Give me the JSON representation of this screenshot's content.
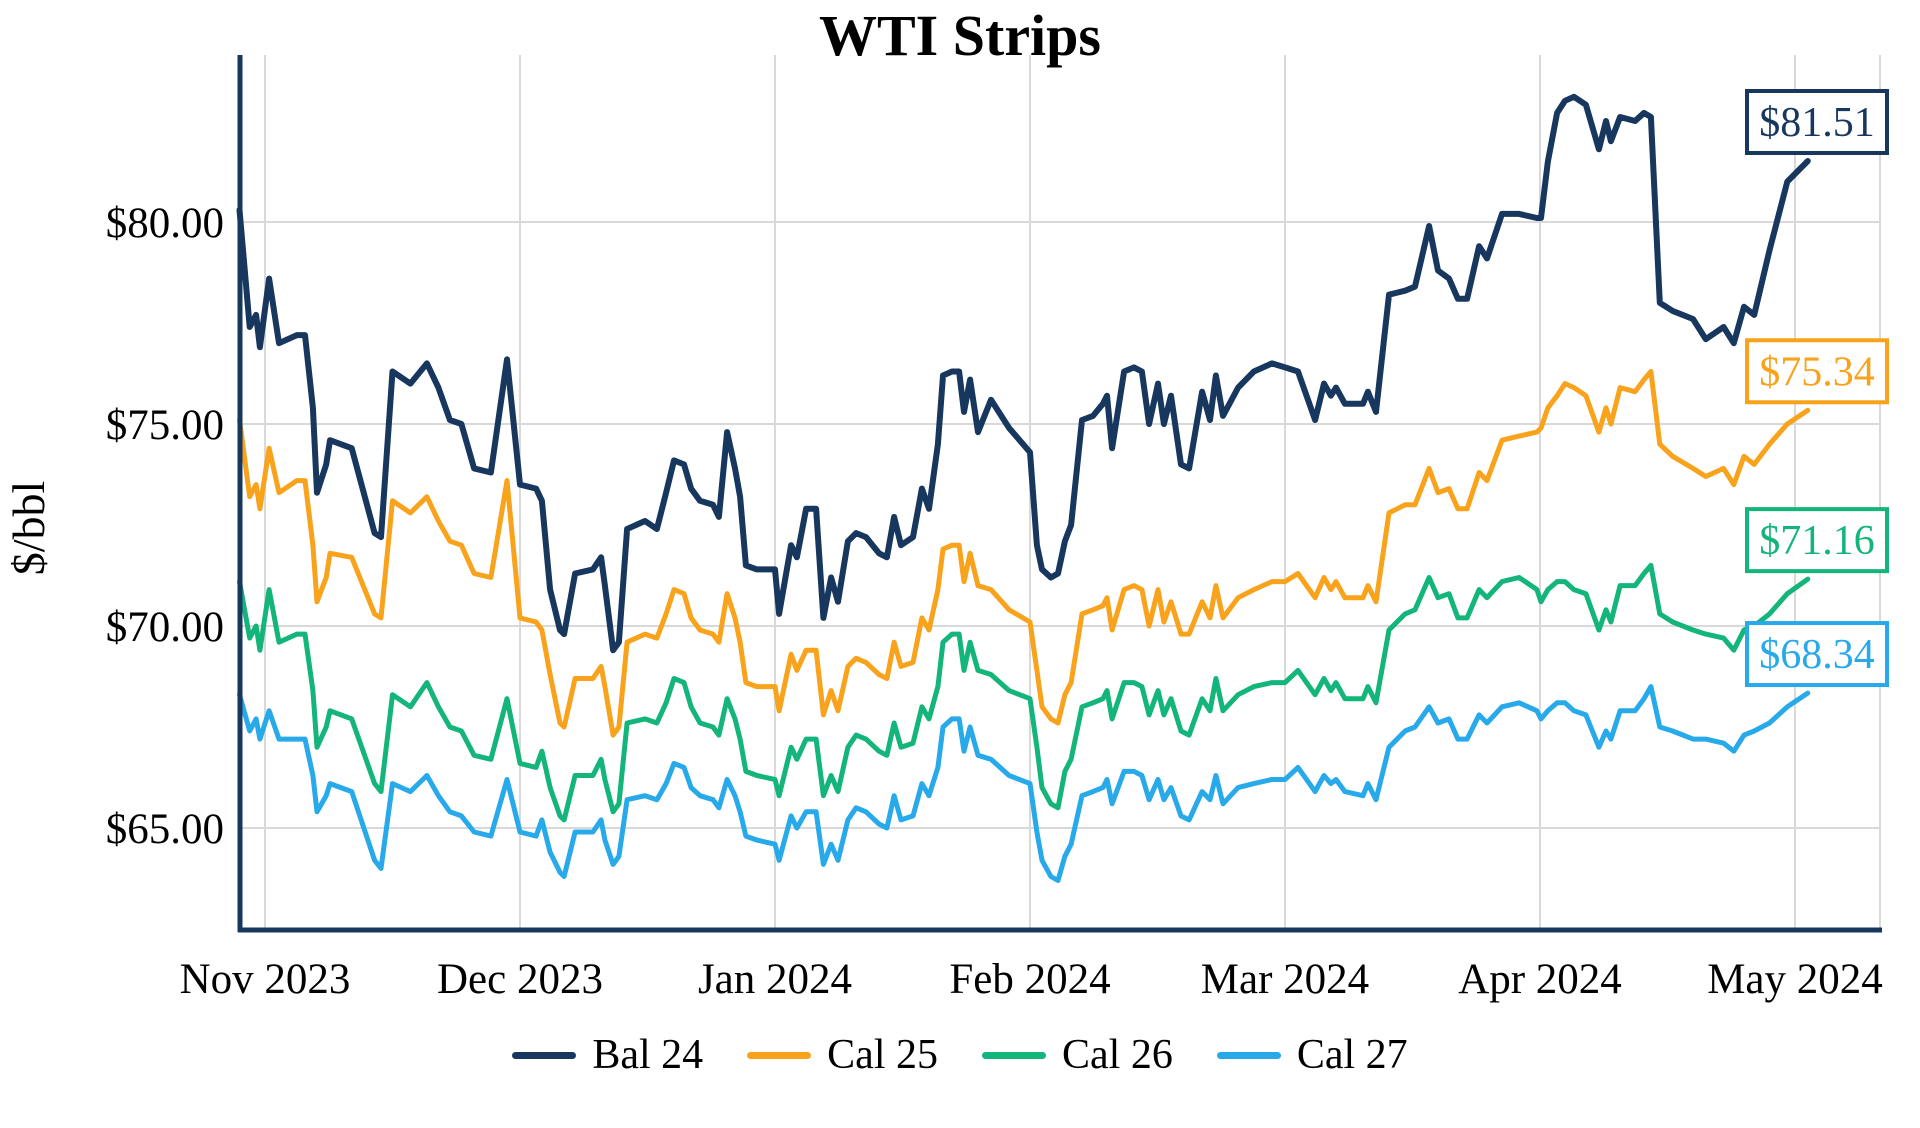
{
  "chart": {
    "title": "WTI Strips",
    "ylabel": "$/bbl"
  },
  "colors": {
    "axis_spine": "#17375E",
    "gridline": "#D9D9D9",
    "text": "#000000",
    "background": "#FFFFFF"
  },
  "chart_data": {
    "type": "line",
    "title": "WTI Strips",
    "xlabel": "",
    "ylabel": "$/bbl",
    "x_unit": "months since 2023-11-01 (0 = Nov 1 2023, 6 = May 1 2024)",
    "xlim": [
      -0.12,
      6.35
    ],
    "ylim": [
      62.3,
      84.1
    ],
    "grid": true,
    "legend_position": "bottom",
    "y_ticks": [
      {
        "label": "$65.00",
        "value": 65
      },
      {
        "label": "$70.00",
        "value": 70
      },
      {
        "label": "$75.00",
        "value": 75
      },
      {
        "label": "$80.00",
        "value": 80
      }
    ],
    "x_ticks": [
      {
        "label": "Nov 2023",
        "value": 0
      },
      {
        "label": "Dec 2023",
        "value": 1
      },
      {
        "label": "Jan 2024",
        "value": 2
      },
      {
        "label": "Feb 2024",
        "value": 3
      },
      {
        "label": "Mar 2024",
        "value": 4
      },
      {
        "label": "Apr 2024",
        "value": 5
      },
      {
        "label": "May 2024",
        "value": 6
      }
    ],
    "x": [
      -0.1,
      -0.06,
      -0.035,
      -0.02,
      0.016,
      0.055,
      0.125,
      0.157,
      0.188,
      0.204,
      0.24,
      0.255,
      0.34,
      0.43,
      0.455,
      0.5,
      0.57,
      0.635,
      0.68,
      0.725,
      0.77,
      0.82,
      0.886,
      0.949,
      1.0,
      1.063,
      1.086,
      1.118,
      1.157,
      1.173,
      1.216,
      1.286,
      1.318,
      1.333,
      1.365,
      1.388,
      1.42,
      1.49,
      1.537,
      1.573,
      1.604,
      1.643,
      1.671,
      1.706,
      1.757,
      1.78,
      1.812,
      1.843,
      1.863,
      1.886,
      1.929,
      2.0,
      2.016,
      2.063,
      2.086,
      2.122,
      2.161,
      2.19,
      2.22,
      2.247,
      2.286,
      2.318,
      2.357,
      2.408,
      2.439,
      2.467,
      2.494,
      2.541,
      2.576,
      2.604,
      2.639,
      2.659,
      2.694,
      2.722,
      2.741,
      2.765,
      2.796,
      2.847,
      2.918,
      3.0,
      3.027,
      3.047,
      3.082,
      3.11,
      3.137,
      3.161,
      3.204,
      3.247,
      3.286,
      3.302,
      3.322,
      3.369,
      3.408,
      3.439,
      3.467,
      3.502,
      3.525,
      3.553,
      3.592,
      3.624,
      3.675,
      3.706,
      3.729,
      3.757,
      3.816,
      3.878,
      3.949,
      4.0,
      4.051,
      4.118,
      4.153,
      4.18,
      4.2,
      4.235,
      4.306,
      4.325,
      4.357,
      4.408,
      4.471,
      4.51,
      4.565,
      4.6,
      4.643,
      4.678,
      4.714,
      4.761,
      4.792,
      4.851,
      4.918,
      4.988,
      5.004,
      5.031,
      5.067,
      5.098,
      5.133,
      5.18,
      5.231,
      5.259,
      5.278,
      5.314,
      5.373,
      5.408,
      5.435,
      5.47,
      5.52,
      5.6,
      5.65,
      5.72,
      5.76,
      5.8,
      5.84,
      5.9,
      5.97,
      6.05
    ],
    "series": [
      {
        "name": "Bal 24",
        "color": "#17375E",
        "end_label": "$81.51",
        "last_value": 81.51,
        "values": [
          80.3,
          77.4,
          77.7,
          76.9,
          78.6,
          77.0,
          77.2,
          77.2,
          75.4,
          73.3,
          74.0,
          74.6,
          74.4,
          72.3,
          72.2,
          76.3,
          76.0,
          76.5,
          75.9,
          75.1,
          75.0,
          73.9,
          73.8,
          76.6,
          73.5,
          73.4,
          73.1,
          70.9,
          69.9,
          69.8,
          71.3,
          71.4,
          71.7,
          71.0,
          69.4,
          69.6,
          72.4,
          72.6,
          72.4,
          73.3,
          74.1,
          74.0,
          73.4,
          73.1,
          73.0,
          72.7,
          74.8,
          73.9,
          73.2,
          71.5,
          71.4,
          71.4,
          70.3,
          72.0,
          71.7,
          72.9,
          72.9,
          70.2,
          71.2,
          70.6,
          72.1,
          72.3,
          72.2,
          71.8,
          71.7,
          72.7,
          72.0,
          72.2,
          73.4,
          72.9,
          74.5,
          76.2,
          76.3,
          76.3,
          75.3,
          76.1,
          74.8,
          75.6,
          74.9,
          74.3,
          72.0,
          71.4,
          71.2,
          71.3,
          72.1,
          72.5,
          75.1,
          75.2,
          75.5,
          75.7,
          74.4,
          76.3,
          76.4,
          76.3,
          75.0,
          76.0,
          75.0,
          75.7,
          74.0,
          73.9,
          75.8,
          75.1,
          76.2,
          75.2,
          75.9,
          76.3,
          76.5,
          76.4,
          76.3,
          75.1,
          76.0,
          75.7,
          75.9,
          75.5,
          75.5,
          75.8,
          75.3,
          78.2,
          78.3,
          78.4,
          79.9,
          78.8,
          78.6,
          78.1,
          78.1,
          79.4,
          79.1,
          80.2,
          80.2,
          80.1,
          80.1,
          81.5,
          82.7,
          83.0,
          83.1,
          82.9,
          81.8,
          82.5,
          82.0,
          82.6,
          82.5,
          82.7,
          82.6,
          78.0,
          77.8,
          77.6,
          77.1,
          77.4,
          77.0,
          77.9,
          77.7,
          79.3,
          81.0,
          81.51
        ]
      },
      {
        "name": "Cal 25",
        "color": "#F9A21B",
        "end_label": "$75.34",
        "last_value": 75.34,
        "values": [
          75.1,
          73.2,
          73.5,
          72.9,
          74.4,
          73.3,
          73.6,
          73.6,
          72.0,
          70.6,
          71.2,
          71.8,
          71.7,
          70.3,
          70.2,
          73.1,
          72.8,
          73.2,
          72.6,
          72.1,
          72.0,
          71.3,
          71.2,
          73.6,
          70.2,
          70.1,
          69.9,
          68.8,
          67.6,
          67.5,
          68.7,
          68.7,
          69.0,
          68.5,
          67.3,
          67.5,
          69.6,
          69.8,
          69.7,
          70.3,
          70.9,
          70.8,
          70.2,
          69.9,
          69.8,
          69.6,
          70.8,
          70.2,
          69.6,
          68.6,
          68.5,
          68.5,
          67.9,
          69.3,
          68.9,
          69.4,
          69.4,
          67.8,
          68.4,
          67.9,
          69.0,
          69.2,
          69.1,
          68.8,
          68.7,
          69.6,
          69.0,
          69.1,
          70.2,
          69.9,
          70.9,
          71.9,
          72.0,
          72.0,
          71.1,
          71.8,
          71.0,
          70.9,
          70.4,
          70.1,
          68.9,
          68.0,
          67.7,
          67.6,
          68.3,
          68.6,
          70.3,
          70.4,
          70.5,
          70.7,
          69.9,
          70.9,
          71.0,
          70.9,
          70.0,
          70.9,
          70.1,
          70.6,
          69.8,
          69.8,
          70.6,
          70.2,
          71.0,
          70.2,
          70.7,
          70.9,
          71.1,
          71.1,
          71.3,
          70.7,
          71.2,
          70.9,
          71.1,
          70.7,
          70.7,
          71.0,
          70.6,
          72.8,
          73.0,
          73.0,
          73.9,
          73.3,
          73.4,
          72.9,
          72.9,
          73.8,
          73.6,
          74.6,
          74.7,
          74.8,
          74.9,
          75.4,
          75.7,
          76.0,
          75.9,
          75.7,
          74.8,
          75.4,
          75.0,
          75.9,
          75.8,
          76.1,
          76.3,
          74.5,
          74.2,
          73.9,
          73.7,
          73.9,
          73.5,
          74.2,
          74.0,
          74.5,
          75.0,
          75.34
        ]
      },
      {
        "name": "Cal 26",
        "color": "#13B57A",
        "end_label": "$71.16",
        "last_value": 71.16,
        "values": [
          71.1,
          69.7,
          70.0,
          69.4,
          70.9,
          69.6,
          69.8,
          69.8,
          68.4,
          67.0,
          67.5,
          67.9,
          67.7,
          66.1,
          65.9,
          68.3,
          68.0,
          68.6,
          68.0,
          67.5,
          67.4,
          66.8,
          66.7,
          68.2,
          66.6,
          66.5,
          66.9,
          66.0,
          65.3,
          65.2,
          66.3,
          66.3,
          66.7,
          66.2,
          65.4,
          65.6,
          67.6,
          67.7,
          67.6,
          68.1,
          68.7,
          68.6,
          68.0,
          67.6,
          67.5,
          67.3,
          68.2,
          67.7,
          67.2,
          66.4,
          66.3,
          66.2,
          65.8,
          67.0,
          66.7,
          67.2,
          67.2,
          65.8,
          66.3,
          65.9,
          67.0,
          67.3,
          67.2,
          66.9,
          66.8,
          67.6,
          67.0,
          67.1,
          68.0,
          67.7,
          68.5,
          69.6,
          69.8,
          69.8,
          68.9,
          69.6,
          68.9,
          68.8,
          68.4,
          68.2,
          67.0,
          66.0,
          65.6,
          65.5,
          66.4,
          66.7,
          68.0,
          68.1,
          68.2,
          68.4,
          67.7,
          68.6,
          68.6,
          68.5,
          67.8,
          68.4,
          67.8,
          68.2,
          67.4,
          67.3,
          68.2,
          67.9,
          68.7,
          67.9,
          68.3,
          68.5,
          68.6,
          68.6,
          68.9,
          68.3,
          68.7,
          68.4,
          68.6,
          68.2,
          68.2,
          68.5,
          68.1,
          69.9,
          70.3,
          70.4,
          71.2,
          70.7,
          70.8,
          70.2,
          70.2,
          70.9,
          70.7,
          71.1,
          71.2,
          70.9,
          70.6,
          70.9,
          71.1,
          71.1,
          70.9,
          70.8,
          69.9,
          70.4,
          70.1,
          71.0,
          71.0,
          71.3,
          71.5,
          70.3,
          70.1,
          69.9,
          69.8,
          69.7,
          69.4,
          69.9,
          70.0,
          70.3,
          70.8,
          71.16
        ]
      },
      {
        "name": "Cal 27",
        "color": "#27A9EA",
        "end_label": "$68.34",
        "last_value": 68.34,
        "values": [
          68.3,
          67.4,
          67.7,
          67.2,
          67.9,
          67.2,
          67.2,
          67.2,
          66.3,
          65.4,
          65.8,
          66.1,
          65.9,
          64.2,
          64.0,
          66.1,
          65.9,
          66.3,
          65.8,
          65.4,
          65.3,
          64.9,
          64.8,
          66.2,
          64.9,
          64.8,
          65.2,
          64.4,
          63.9,
          63.8,
          64.9,
          64.9,
          65.2,
          64.7,
          64.1,
          64.3,
          65.7,
          65.8,
          65.7,
          66.1,
          66.6,
          66.5,
          66.0,
          65.8,
          65.7,
          65.5,
          66.2,
          65.8,
          65.4,
          64.8,
          64.7,
          64.6,
          64.2,
          65.3,
          65.0,
          65.4,
          65.4,
          64.1,
          64.6,
          64.2,
          65.2,
          65.5,
          65.4,
          65.1,
          65.0,
          65.8,
          65.2,
          65.3,
          66.1,
          65.8,
          66.5,
          67.5,
          67.7,
          67.7,
          66.9,
          67.5,
          66.8,
          66.7,
          66.3,
          66.1,
          64.9,
          64.2,
          63.8,
          63.7,
          64.3,
          64.6,
          65.8,
          65.9,
          66.0,
          66.2,
          65.6,
          66.4,
          66.4,
          66.3,
          65.7,
          66.2,
          65.7,
          66.0,
          65.3,
          65.2,
          65.9,
          65.7,
          66.3,
          65.6,
          66.0,
          66.1,
          66.2,
          66.2,
          66.5,
          65.9,
          66.3,
          66.1,
          66.2,
          65.9,
          65.8,
          66.1,
          65.7,
          67.0,
          67.4,
          67.5,
          68.0,
          67.6,
          67.7,
          67.2,
          67.2,
          67.8,
          67.6,
          68.0,
          68.1,
          67.9,
          67.7,
          67.9,
          68.1,
          68.1,
          67.9,
          67.8,
          67.0,
          67.4,
          67.2,
          67.9,
          67.9,
          68.2,
          68.5,
          67.5,
          67.4,
          67.2,
          67.2,
          67.1,
          66.9,
          67.3,
          67.4,
          67.6,
          68.0,
          68.34
        ]
      }
    ]
  }
}
